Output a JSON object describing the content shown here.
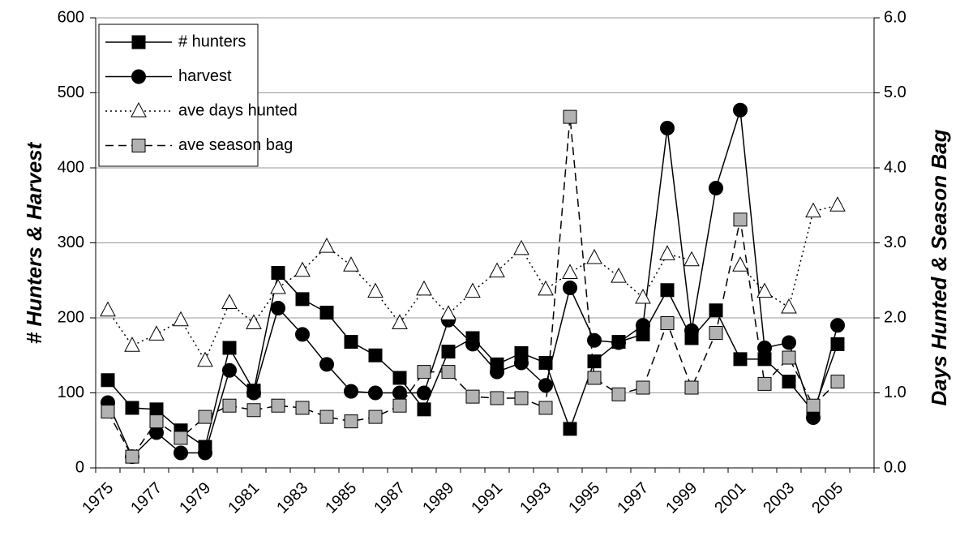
{
  "chart_data": {
    "type": "line",
    "categories": [
      "1975",
      null,
      "1977",
      null,
      "1979",
      null,
      "1981",
      null,
      "1983",
      null,
      "1985",
      null,
      "1987",
      null,
      "1989",
      null,
      "1991",
      null,
      "1993",
      null,
      "1995",
      null,
      "1997",
      null,
      "1999",
      null,
      "2001",
      null,
      "2003",
      null,
      "2005",
      null
    ],
    "y_label": "# Hunters & Harvest",
    "y2_label": "Days Hunted & Season Bag",
    "ylim": [
      0,
      600
    ],
    "yticks": [
      0,
      100,
      200,
      300,
      400,
      500,
      600
    ],
    "y2lim": [
      0,
      6
    ],
    "y2ticks": [
      {
        "value": 0,
        "label": "0.0"
      },
      {
        "value": 1,
        "label": "1.0"
      },
      {
        "value": 2,
        "label": "2.0"
      },
      {
        "value": 3,
        "label": "3.0"
      },
      {
        "value": 4,
        "label": "4.0"
      },
      {
        "value": 5,
        "label": "5.0"
      },
      {
        "value": 6,
        "label": "6.0"
      }
    ],
    "grid": true,
    "legend": "upper left",
    "series": [
      {
        "name": "# hunters",
        "color": "#000000",
        "marker": "square",
        "line_style": "solid",
        "values": [
          117,
          80,
          78,
          50,
          28,
          160,
          103,
          260,
          225,
          207,
          168,
          150,
          120,
          78,
          155,
          173,
          138,
          153,
          140,
          52,
          142,
          168,
          178,
          237,
          173,
          210,
          145,
          145,
          115,
          75,
          165,
          null
        ]
      },
      {
        "name": "harvest",
        "color": "#000000",
        "marker": "circle",
        "line_style": "solid",
        "values": [
          87,
          15,
          47,
          20,
          20,
          130,
          100,
          213,
          178,
          138,
          102,
          100,
          100,
          100,
          197,
          165,
          128,
          140,
          110,
          240,
          170,
          167,
          190,
          453,
          183,
          373,
          477,
          160,
          167,
          67,
          190,
          null
        ]
      },
      {
        "name": "ave days hunted",
        "color": "#ffffff",
        "marker": "triangle",
        "line_style": "dotted",
        "axis": "y2",
        "values": [
          2.1,
          1.63,
          1.78,
          1.97,
          1.43,
          2.2,
          1.93,
          2.4,
          2.63,
          2.95,
          2.7,
          2.35,
          1.93,
          2.38,
          2.05,
          2.35,
          2.62,
          2.92,
          2.38,
          2.6,
          2.8,
          2.55,
          2.27,
          2.85,
          2.77,
          null,
          2.7,
          2.35,
          2.14,
          3.42,
          3.5,
          null
        ]
      },
      {
        "name": "ave season bag",
        "color": "#b2b2b2",
        "marker": "square",
        "line_style": "dashed",
        "axis": "y2",
        "values": [
          0.75,
          0.15,
          0.62,
          0.4,
          0.68,
          0.83,
          0.77,
          0.83,
          0.8,
          0.68,
          0.62,
          0.68,
          0.83,
          1.28,
          1.28,
          0.95,
          0.93,
          0.93,
          0.8,
          4.68,
          1.2,
          0.98,
          1.07,
          1.93,
          1.07,
          1.8,
          3.31,
          1.12,
          1.47,
          0.83,
          1.15,
          null
        ]
      }
    ]
  }
}
